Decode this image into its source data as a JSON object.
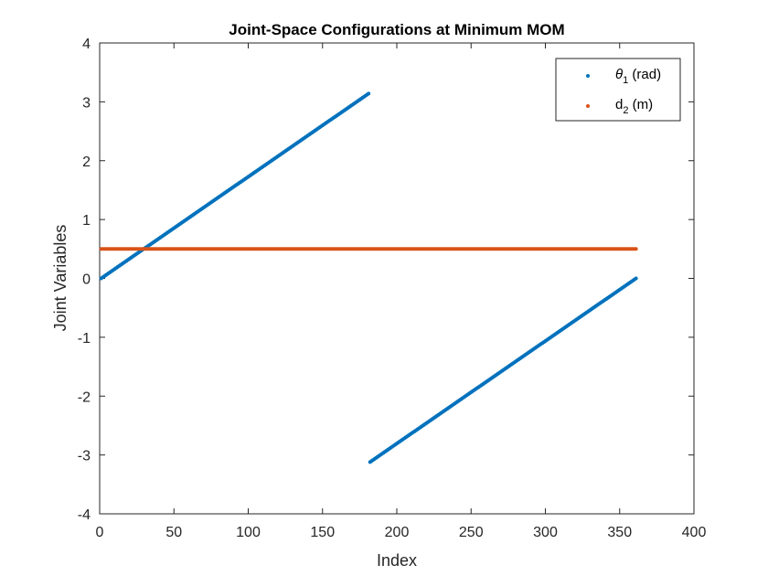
{
  "chart_data": {
    "type": "scatter",
    "title": "Joint-Space Configurations at Minimum MOM",
    "xlabel": "Index",
    "ylabel": "Joint Variables",
    "xlim": [
      0,
      400
    ],
    "ylim": [
      -4,
      4
    ],
    "xticks": [
      0,
      50,
      100,
      150,
      200,
      250,
      300,
      350,
      400
    ],
    "yticks": [
      -4,
      -3,
      -2,
      -1,
      0,
      1,
      2,
      3,
      4
    ],
    "grid": false,
    "legend_position": "top-right",
    "series": [
      {
        "name": "θ1 (rad)",
        "legend": {
          "base": "θ",
          "sub": "1",
          "suffix": " (rad)"
        },
        "color": "#0072BD",
        "segments": [
          {
            "x_start": 1,
            "x_end": 181,
            "y_start": 0.0,
            "y_end": 3.14
          },
          {
            "x_start": 182,
            "x_end": 361,
            "y_start": -3.12,
            "y_end": 0.0
          }
        ]
      },
      {
        "name": "d2 (m)",
        "legend": {
          "base": "d",
          "sub": "2",
          "suffix": " (m)"
        },
        "color": "#D95319",
        "segments": [
          {
            "x_start": 1,
            "x_end": 361,
            "y_start": 0.5,
            "y_end": 0.5
          }
        ]
      }
    ]
  }
}
